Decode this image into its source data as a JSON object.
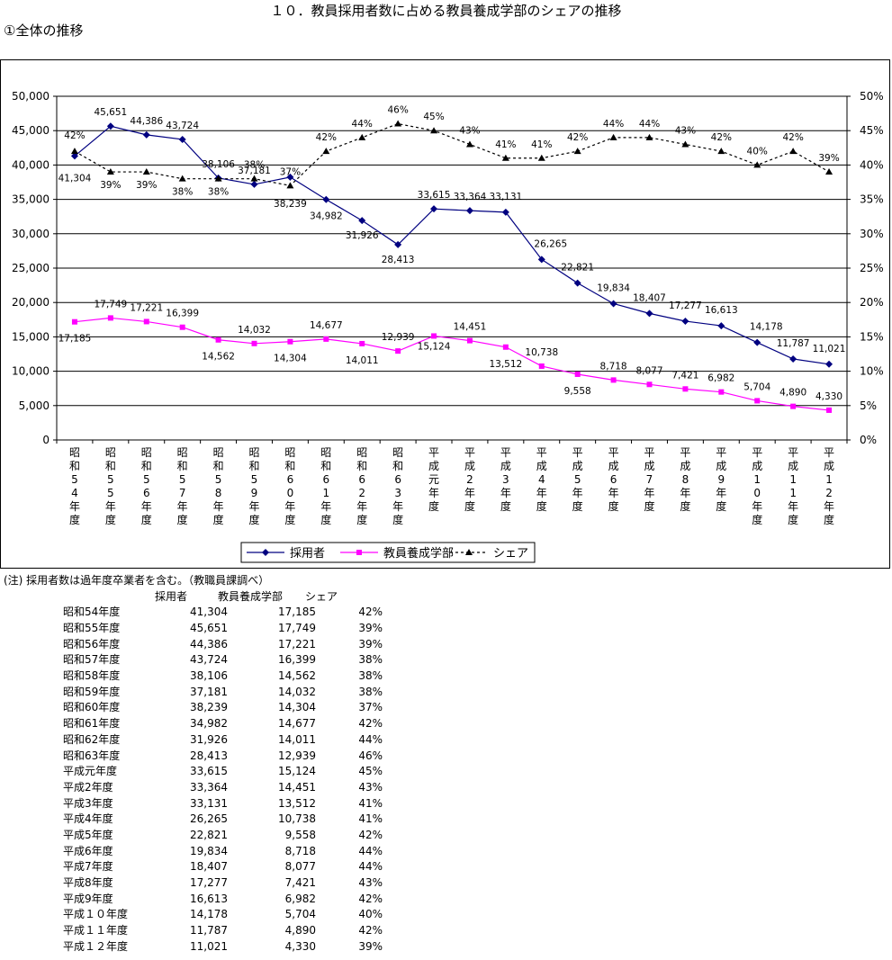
{
  "page": {
    "title": "１０．教員採用者数に占める教員養成学部のシェアの推移",
    "subtitle": "①全体の推移",
    "note": "(注) 採用者数は過年度卒業者を含む。（教職員課調べ）"
  },
  "table": {
    "headers": [
      "採用者",
      "教員養成学部",
      "シェア"
    ],
    "rows": [
      [
        "昭和54年度",
        "41,304",
        "17,185",
        "42%"
      ],
      [
        "昭和55年度",
        "45,651",
        "17,749",
        "39%"
      ],
      [
        "昭和56年度",
        "44,386",
        "17,221",
        "39%"
      ],
      [
        "昭和57年度",
        "43,724",
        "16,399",
        "38%"
      ],
      [
        "昭和58年度",
        "38,106",
        "14,562",
        "38%"
      ],
      [
        "昭和59年度",
        "37,181",
        "14,032",
        "38%"
      ],
      [
        "昭和60年度",
        "38,239",
        "14,304",
        "37%"
      ],
      [
        "昭和61年度",
        "34,982",
        "14,677",
        "42%"
      ],
      [
        "昭和62年度",
        "31,926",
        "14,011",
        "44%"
      ],
      [
        "昭和63年度",
        "28,413",
        "12,939",
        "46%"
      ],
      [
        "平成元年度",
        "33,615",
        "15,124",
        "45%"
      ],
      [
        "平成2年度",
        "33,364",
        "14,451",
        "43%"
      ],
      [
        "平成3年度",
        "33,131",
        "13,512",
        "41%"
      ],
      [
        "平成4年度",
        "26,265",
        "10,738",
        "41%"
      ],
      [
        "平成5年度",
        "22,821",
        "9,558",
        "42%"
      ],
      [
        "平成6年度",
        "19,834",
        "8,718",
        "44%"
      ],
      [
        "平成7年度",
        "18,407",
        "8,077",
        "44%"
      ],
      [
        "平成8年度",
        "17,277",
        "7,421",
        "43%"
      ],
      [
        "平成9年度",
        "16,613",
        "6,982",
        "42%"
      ],
      [
        "平成１０年度",
        "14,178",
        "5,704",
        "40%"
      ],
      [
        "平成１１年度",
        "11,787",
        "4,890",
        "42%"
      ],
      [
        "平成１２年度",
        "11,021",
        "4,330",
        "39%"
      ]
    ]
  },
  "chart_data": {
    "type": "line",
    "categories": [
      "昭和54年度",
      "昭和55年度",
      "昭和56年度",
      "昭和57年度",
      "昭和58年度",
      "昭和59年度",
      "昭和60年度",
      "昭和61年度",
      "昭和62年度",
      "昭和63年度",
      "平成元年度",
      "平成2年度",
      "平成3年度",
      "平成4年度",
      "平成5年度",
      "平成6年度",
      "平成7年度",
      "平成8年度",
      "平成9年度",
      "平成10年度",
      "平成11年度",
      "平成12年度"
    ],
    "y_ticks": [
      "50,000",
      "45,000",
      "40,000",
      "35,000",
      "30,000",
      "25,000",
      "20,000",
      "15,000",
      "10,000",
      "5,000",
      "0"
    ],
    "y2_ticks": [
      "50%",
      "45%",
      "40%",
      "35%",
      "30%",
      "25%",
      "20%",
      "15%",
      "10%",
      "5%",
      "0%"
    ],
    "ylim": [
      0,
      50000
    ],
    "y2lim": [
      0,
      50
    ],
    "legend_position": "bottom",
    "grid": true,
    "series": [
      {
        "name": "採用者",
        "axis": "left",
        "color": "#000080",
        "marker": "diamond",
        "dash": "solid",
        "values": [
          41304,
          45651,
          44386,
          43724,
          38106,
          37181,
          38239,
          34982,
          31926,
          28413,
          33615,
          33364,
          33131,
          26265,
          22821,
          19834,
          18407,
          17277,
          16613,
          14178,
          11787,
          11021
        ],
        "labels": [
          "41,304",
          "45,651",
          "44,386",
          "43,724",
          "38,106",
          "37,181",
          "38,239",
          "34,982",
          "31,926",
          "28,413",
          "33,615",
          "33,364",
          "33,131",
          "26,265",
          "22,821",
          "19,834",
          "18,407",
          "17,277",
          "16,613",
          "14,178",
          "11,787",
          "11,021"
        ]
      },
      {
        "name": "教員養成学部",
        "axis": "left",
        "color": "#ff00ff",
        "marker": "square",
        "dash": "solid",
        "values": [
          17185,
          17749,
          17221,
          16399,
          14562,
          14032,
          14304,
          14677,
          14011,
          12939,
          15124,
          14451,
          13512,
          10738,
          9558,
          8718,
          8077,
          7421,
          6982,
          5704,
          4890,
          4330
        ],
        "labels": [
          "17,185",
          "17,749",
          "17,221",
          "16,399",
          "14,562",
          "14,032",
          "14,304",
          "14,677",
          "14,011",
          "12,939",
          "15,124",
          "14,451",
          "13,512",
          "10,738",
          "9,558",
          "8,718",
          "8,077",
          "7,421",
          "6,982",
          "5,704",
          "4,890",
          "4,330"
        ]
      },
      {
        "name": "シェア",
        "axis": "right",
        "color": "#000000",
        "marker": "triangle",
        "dash": "dotted",
        "values": [
          42,
          39,
          39,
          38,
          38,
          38,
          37,
          42,
          44,
          46,
          45,
          43,
          41,
          41,
          42,
          44,
          44,
          43,
          42,
          40,
          42,
          39
        ],
        "labels": [
          "42%",
          "39%",
          "39%",
          "38%",
          "38%",
          "38%",
          "37%",
          "42%",
          "44%",
          "46%",
          "45%",
          "43%",
          "41%",
          "41%",
          "42%",
          "44%",
          "44%",
          "43%",
          "42%",
          "40%",
          "42%",
          "39%"
        ]
      }
    ]
  }
}
